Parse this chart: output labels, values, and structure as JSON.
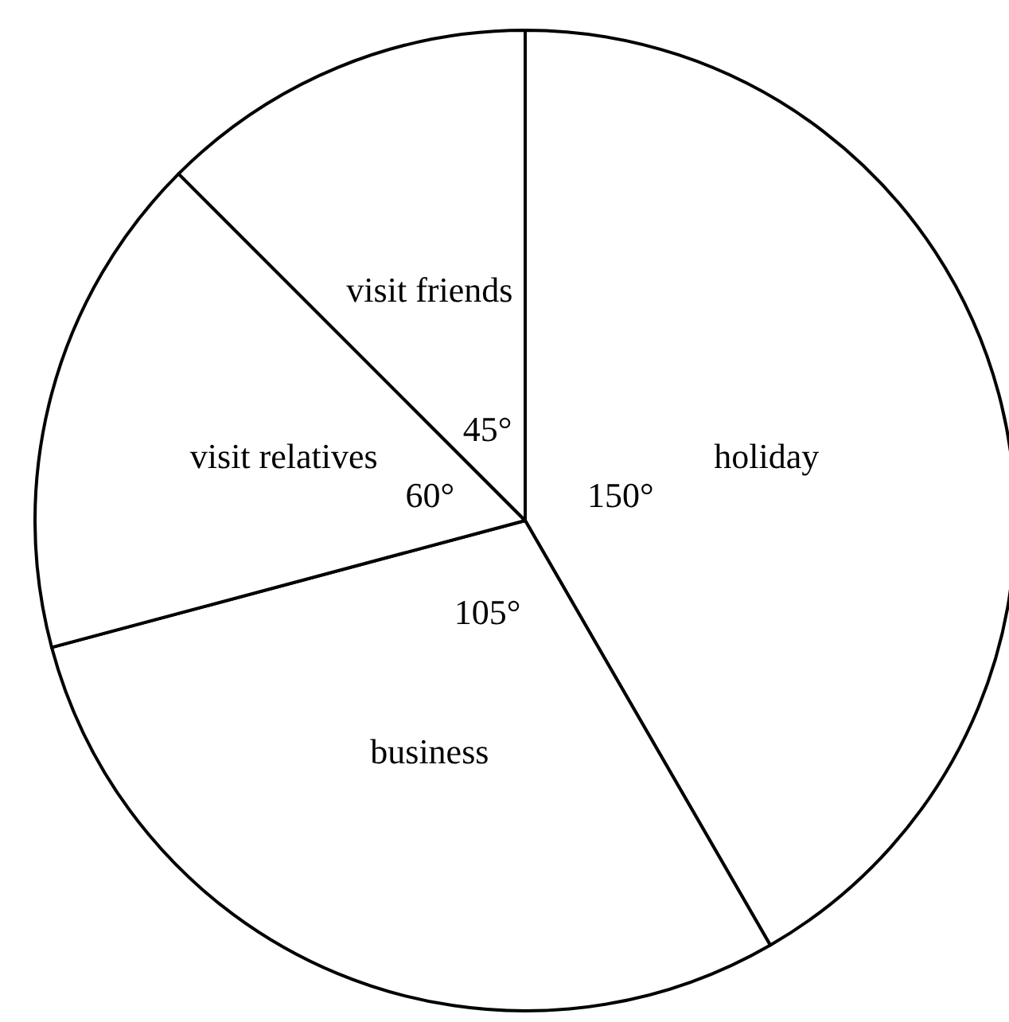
{
  "chart_data": {
    "type": "pie",
    "categories": [
      "holiday",
      "business",
      "visit relatives",
      "visit friends"
    ],
    "values": [
      150,
      105,
      60,
      45
    ],
    "value_labels": [
      "150°",
      "105°",
      "60°",
      "45°"
    ],
    "colors": [
      "#ffffff",
      "#ffffff",
      "#ffffff",
      "#ffffff"
    ],
    "legend": false
  }
}
